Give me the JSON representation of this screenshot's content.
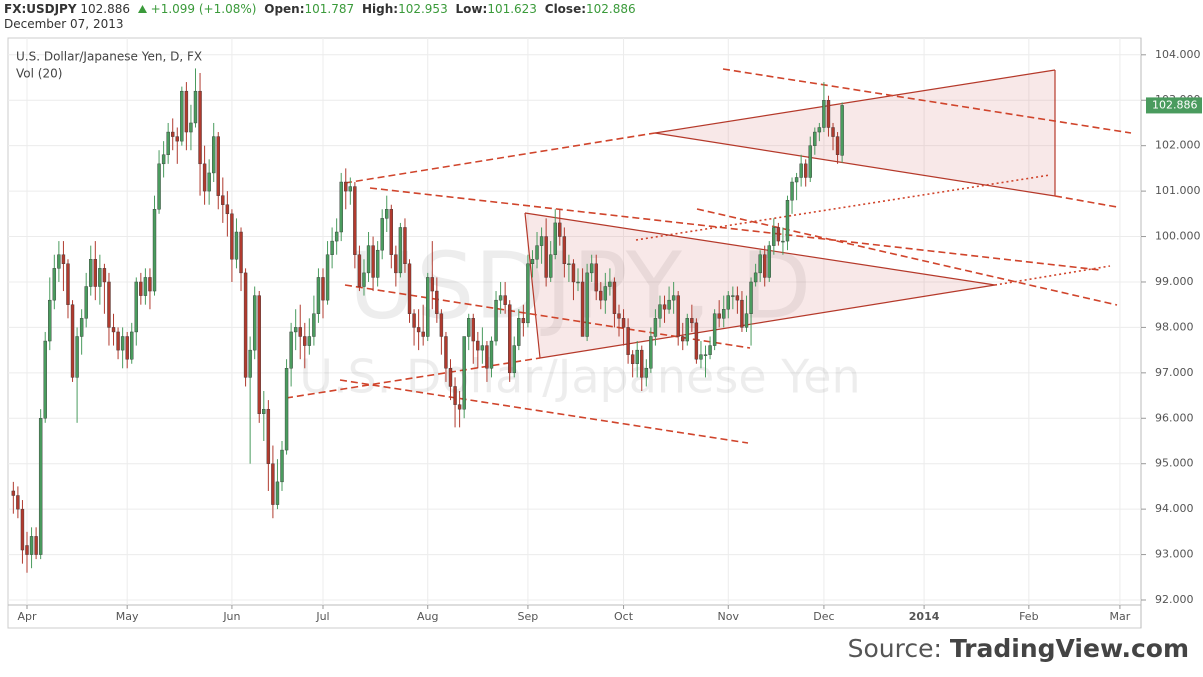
{
  "header": {
    "symbol": "FX:USDJPY",
    "price": "102.886",
    "change": "+1.099 (+1.08%)",
    "stats": [
      {
        "label": "Open:",
        "value": "101.787"
      },
      {
        "label": "High:",
        "value": "102.953"
      },
      {
        "label": "Low:",
        "value": "101.623"
      },
      {
        "label": "Close:",
        "value": "102.886"
      }
    ],
    "date": "December 07, 2013"
  },
  "footer": {
    "source_label": "Source:",
    "source": "TradingView.com"
  },
  "chart_data": {
    "type": "candlestick",
    "title": "U.S. Dollar/Japanese Yen, D, FX",
    "volume_label": "Vol (20)",
    "watermark": "USDJPY, D",
    "watermark_subtitle": "U.S. Dollar/Japanese Yen",
    "up_color": "#4a9b5e",
    "down_color": "#b03a2e",
    "grid": true,
    "categories": [
      null,
      null,
      null,
      "Apr",
      null,
      null,
      null,
      null,
      null,
      null,
      null,
      null,
      null,
      null,
      null,
      null,
      null,
      null,
      null,
      null,
      null,
      null,
      null,
      null,
      null,
      "May",
      null,
      null,
      null,
      null,
      null,
      null,
      null,
      null,
      null,
      null,
      null,
      null,
      null,
      null,
      null,
      null,
      null,
      null,
      null,
      null,
      null,
      null,
      "Jun",
      null,
      null,
      null,
      null,
      null,
      null,
      null,
      null,
      null,
      null,
      null,
      null,
      null,
      null,
      null,
      null,
      null,
      null,
      null,
      "Jul",
      null,
      null,
      null,
      null,
      null,
      null,
      null,
      null,
      null,
      null,
      null,
      null,
      null,
      null,
      null,
      null,
      null,
      null,
      null,
      null,
      null,
      null,
      "Aug",
      null,
      null,
      null,
      null,
      null,
      null,
      null,
      null,
      null,
      null,
      null,
      null,
      null,
      null,
      null,
      null,
      null,
      null,
      null,
      null,
      null,
      "Sep",
      null,
      null,
      null,
      null,
      null,
      null,
      null,
      null,
      null,
      null,
      null,
      null,
      null,
      null,
      null,
      null,
      null,
      null,
      null,
      null,
      "Oct",
      null,
      null,
      null,
      null,
      null,
      null,
      null,
      null,
      null,
      null,
      null,
      null,
      null,
      null,
      null,
      null,
      null,
      null,
      null,
      null,
      null,
      null,
      "Nov",
      null,
      null,
      null,
      null,
      null,
      null,
      null,
      null,
      null,
      null,
      null,
      null,
      null,
      null,
      null,
      null,
      null,
      null,
      null,
      null,
      "Dec",
      null,
      null,
      null,
      null,
      null,
      null,
      null,
      null,
      null,
      null,
      null,
      null,
      null,
      null,
      null,
      null,
      null,
      null,
      null,
      null,
      null,
      "2014",
      null,
      null,
      null,
      null,
      null,
      null,
      null,
      null,
      null,
      null,
      null,
      null,
      null,
      null,
      null,
      null,
      null,
      null,
      null,
      null,
      null,
      null,
      "Feb",
      null,
      null,
      null,
      null,
      null,
      null,
      null,
      null,
      null,
      null,
      null,
      null,
      null,
      null,
      null,
      null,
      null,
      null,
      null,
      "Mar",
      null,
      null,
      null,
      null
    ],
    "open": [
      94.4,
      94.3,
      94.0,
      93.2,
      93.0,
      93.4,
      93.0,
      96.0,
      97.7,
      98.6,
      99.3,
      99.6,
      99.4,
      98.5,
      96.9,
      97.8,
      98.2,
      98.9,
      99.5,
      98.9,
      99.3,
      99.0,
      98.0,
      97.9,
      97.5,
      97.8,
      97.3,
      97.9,
      99.0,
      98.7,
      99.1,
      98.8,
      100.6,
      101.6,
      101.8,
      102.3,
      102.2,
      102.1,
      103.2,
      102.3,
      102.5,
      103.2,
      101.6,
      101.0,
      101.4,
      102.2,
      100.9,
      100.7,
      100.5,
      99.5,
      100.1,
      99.2,
      96.9,
      97.5,
      98.7,
      96.1,
      96.2,
      95.0,
      94.1,
      94.6,
      95.3,
      97.1,
      97.9,
      98.0,
      97.8,
      97.6,
      97.8,
      98.3,
      99.1,
      98.6,
      99.6,
      99.9,
      100.1,
      101.2,
      101.0,
      101.1,
      99.6,
      98.9,
      99.2,
      99.8,
      99.1,
      99.7,
      100.4,
      100.6,
      99.6,
      99.2,
      100.2,
      99.4,
      98.3,
      98.0,
      97.9,
      97.8,
      99.1,
      98.8,
      98.3,
      97.8,
      97.1,
      96.7,
      96.3,
      96.2,
      97.8,
      98.2,
      97.7,
      97.5,
      97.6,
      97.1,
      97.7,
      98.6,
      98.7,
      98.5,
      97.0,
      97.6,
      98.2,
      98.1,
      99.4,
      99.5,
      99.8,
      100.0,
      99.1,
      99.6,
      100.3,
      100.0,
      99.4,
      99.4,
      99.0,
      99.0,
      97.8,
      99.2,
      99.4,
      98.8,
      98.6,
      98.9,
      99.0,
      98.3,
      98.2,
      98.0,
      97.4,
      97.2,
      97.5,
      96.9,
      97.1,
      97.8,
      98.2,
      98.5,
      98.4,
      98.6,
      98.7,
      97.8,
      97.7,
      98.2,
      98.1,
      97.3,
      97.4,
      97.4,
      97.6,
      98.3,
      98.2,
      98.4,
      98.7,
      98.7,
      98.6,
      98.0,
      98.3,
      99.0,
      99.2,
      99.6,
      99.1,
      99.8,
      100.2,
      99.9,
      99.9,
      100.8,
      101.2,
      101.3,
      101.6,
      101.3,
      102.0,
      102.3,
      102.4,
      103.0,
      102.4,
      102.2,
      101.787,
      null,
      null,
      null,
      null,
      null,
      null,
      null,
      null,
      null,
      null,
      null,
      null,
      null,
      null,
      null,
      null,
      null,
      null,
      null,
      null,
      null,
      null,
      null,
      null,
      null,
      null,
      null,
      null,
      null,
      null,
      null,
      null,
      null,
      null,
      null,
      null,
      null,
      null,
      null,
      null,
      null,
      null,
      null,
      null,
      null,
      null,
      null,
      null,
      null,
      null,
      null,
      null,
      null,
      null,
      null,
      null,
      null,
      null,
      null,
      null,
      null,
      null,
      null,
      null,
      null
    ],
    "high": [
      94.6,
      94.5,
      94.2,
      93.5,
      93.6,
      93.6,
      96.2,
      97.9,
      99.1,
      99.6,
      99.9,
      99.9,
      99.5,
      98.6,
      98.0,
      98.4,
      99.2,
      99.8,
      99.9,
      99.6,
      99.4,
      99.2,
      98.3,
      98.0,
      98.0,
      97.9,
      98.1,
      99.1,
      99.2,
      99.3,
      99.3,
      100.9,
      101.9,
      102.1,
      102.5,
      102.6,
      102.4,
      103.3,
      103.4,
      102.9,
      103.7,
      103.6,
      102.0,
      101.7,
      102.5,
      102.3,
      101.3,
      101.0,
      100.6,
      100.4,
      100.2,
      99.3,
      97.8,
      98.9,
      98.8,
      96.6,
      96.4,
      95.4,
      95.1,
      95.5,
      97.3,
      98.1,
      98.4,
      98.5,
      98.1,
      98.2,
      98.7,
      99.3,
      99.3,
      99.9,
      100.2,
      100.4,
      101.4,
      101.5,
      101.3,
      101.2,
      99.8,
      99.5,
      100.1,
      100.0,
      99.9,
      100.6,
      100.9,
      100.7,
      99.8,
      100.3,
      100.4,
      99.5,
      98.4,
      98.4,
      98.5,
      99.2,
      99.9,
      99.1,
      98.4,
      97.9,
      97.3,
      96.9,
      96.6,
      97.8,
      98.3,
      98.3,
      97.9,
      98.0,
      97.7,
      97.8,
      98.8,
      99.0,
      99.0,
      98.6,
      97.8,
      98.4,
      98.5,
      99.6,
      99.7,
      100.1,
      100.2,
      100.4,
      99.9,
      100.6,
      100.6,
      100.2,
      99.6,
      99.5,
      99.3,
      99.3,
      99.4,
      99.6,
      99.6,
      99.0,
      99.2,
      99.3,
      99.1,
      98.5,
      98.4,
      98.2,
      97.5,
      97.7,
      97.6,
      97.3,
      98.0,
      98.4,
      98.7,
      98.7,
      98.9,
      99.0,
      98.8,
      98.1,
      98.3,
      98.5,
      98.2,
      97.7,
      97.6,
      97.8,
      98.4,
      98.6,
      98.7,
      98.8,
      98.9,
      98.9,
      98.8,
      98.7,
      99.1,
      99.4,
      99.7,
      99.8,
      99.9,
      100.4,
      100.3,
      100.2,
      100.9,
      101.3,
      101.4,
      101.8,
      101.7,
      102.2,
      102.4,
      102.5,
      103.4,
      103.1,
      102.5,
      102.3,
      102.953,
      null,
      null,
      null,
      null,
      null,
      null,
      null,
      null,
      null,
      null,
      null,
      null,
      null,
      null,
      null,
      null,
      null,
      null,
      null,
      null,
      null,
      null,
      null,
      null,
      null,
      null,
      null,
      null,
      null,
      null,
      null,
      null,
      null,
      null,
      null,
      null,
      null,
      null,
      null,
      null,
      null,
      null,
      null,
      null,
      null,
      null,
      null,
      null,
      null,
      null,
      null,
      null,
      null,
      null,
      null,
      null,
      null,
      null,
      null,
      null,
      null,
      null,
      null,
      null,
      null
    ],
    "low": [
      93.9,
      93.8,
      92.8,
      92.6,
      92.7,
      92.9,
      92.9,
      95.9,
      97.5,
      98.4,
      99.0,
      98.8,
      98.2,
      96.8,
      95.9,
      97.4,
      98.0,
      98.7,
      98.6,
      98.5,
      98.3,
      97.6,
      97.6,
      97.3,
      97.1,
      97.1,
      97.2,
      97.6,
      98.5,
      98.5,
      98.4,
      98.7,
      100.5,
      101.3,
      101.6,
      101.9,
      101.6,
      102.0,
      101.9,
      101.9,
      102.4,
      100.9,
      100.7,
      100.7,
      101.2,
      100.6,
      100.3,
      100.0,
      99.0,
      99.3,
      98.8,
      96.7,
      95.0,
      97.3,
      95.9,
      95.5,
      94.4,
      93.8,
      94.0,
      94.4,
      95.2,
      96.7,
      97.5,
      97.3,
      97.1,
      97.4,
      97.6,
      98.1,
      98.2,
      98.5,
      99.3,
      99.6,
      99.9,
      100.6,
      100.7,
      99.3,
      98.8,
      98.7,
      99.0,
      98.8,
      98.9,
      99.5,
      100.1,
      99.3,
      98.9,
      99.1,
      99.2,
      98.1,
      97.6,
      97.5,
      97.6,
      97.7,
      98.4,
      98.1,
      97.4,
      96.8,
      96.4,
      95.8,
      95.8,
      96.0,
      97.5,
      97.2,
      97.1,
      97.2,
      96.8,
      96.9,
      97.6,
      98.3,
      98.3,
      96.8,
      96.9,
      97.5,
      97.8,
      98.0,
      99.1,
      99.3,
      99.4,
      98.9,
      99.0,
      99.5,
      99.8,
      99.1,
      99.0,
      98.6,
      98.8,
      97.8,
      97.7,
      99.0,
      98.6,
      98.4,
      98.3,
      98.7,
      98.0,
      97.8,
      97.6,
      97.2,
      96.9,
      96.9,
      96.6,
      96.7,
      97.0,
      97.6,
      98.0,
      98.1,
      98.3,
      98.3,
      97.6,
      97.5,
      97.6,
      97.9,
      97.2,
      97.1,
      96.9,
      97.3,
      97.5,
      98.0,
      98.0,
      98.2,
      98.4,
      98.3,
      97.9,
      97.9,
      97.6,
      98.9,
      99.0,
      98.9,
      99.0,
      99.6,
      99.8,
      99.6,
      99.7,
      100.5,
      100.8,
      101.1,
      101.1,
      101.2,
      101.8,
      102.1,
      102.3,
      102.2,
      101.9,
      101.6,
      101.623,
      null,
      null,
      null,
      null,
      null,
      null,
      null,
      null,
      null,
      null,
      null,
      null,
      null,
      null,
      null,
      null,
      null,
      null,
      null,
      null,
      null,
      null,
      null,
      null,
      null,
      null,
      null,
      null,
      null,
      null,
      null,
      null,
      null,
      null,
      null,
      null,
      null,
      null,
      null,
      null,
      null,
      null,
      null,
      null,
      null,
      null,
      null,
      null,
      null,
      null,
      null,
      null,
      null,
      null,
      null,
      null,
      null,
      null,
      null,
      null,
      null,
      null,
      null,
      null,
      null
    ],
    "close": [
      94.3,
      94.0,
      93.1,
      93.0,
      93.4,
      93.0,
      96.0,
      97.7,
      98.6,
      99.3,
      99.6,
      99.4,
      98.5,
      96.9,
      97.8,
      98.2,
      98.9,
      99.5,
      98.9,
      99.3,
      99.0,
      98.0,
      97.9,
      97.5,
      97.8,
      97.3,
      97.9,
      99.0,
      98.7,
      99.1,
      98.8,
      100.6,
      101.6,
      101.8,
      102.3,
      102.2,
      102.1,
      103.2,
      102.3,
      102.5,
      103.2,
      101.6,
      101.0,
      101.4,
      102.2,
      100.9,
      100.7,
      100.5,
      99.5,
      100.1,
      99.2,
      96.9,
      97.5,
      98.7,
      96.1,
      96.2,
      95.0,
      94.1,
      94.6,
      95.3,
      97.1,
      97.9,
      98.0,
      97.8,
      97.6,
      97.8,
      98.3,
      99.1,
      98.6,
      99.6,
      99.9,
      100.1,
      101.2,
      101.0,
      101.1,
      99.6,
      98.9,
      99.2,
      99.8,
      99.1,
      99.7,
      100.4,
      100.6,
      99.6,
      99.2,
      100.2,
      99.4,
      98.3,
      98.0,
      97.9,
      97.8,
      99.1,
      98.8,
      98.3,
      97.8,
      97.1,
      96.7,
      96.3,
      96.2,
      97.8,
      98.2,
      97.7,
      97.5,
      97.6,
      97.1,
      97.7,
      98.6,
      98.7,
      98.5,
      97.0,
      97.6,
      98.2,
      98.1,
      99.4,
      99.5,
      99.8,
      100.0,
      99.1,
      99.6,
      100.3,
      100.0,
      99.4,
      99.4,
      99.0,
      99.0,
      97.8,
      99.2,
      99.4,
      98.8,
      98.6,
      98.9,
      99.0,
      98.3,
      98.2,
      98.0,
      97.4,
      97.2,
      97.5,
      96.9,
      97.1,
      97.8,
      98.2,
      98.5,
      98.4,
      98.6,
      98.7,
      97.8,
      97.7,
      98.2,
      98.1,
      97.3,
      97.4,
      97.4,
      97.6,
      98.3,
      98.2,
      98.4,
      98.7,
      98.7,
      98.6,
      98.0,
      98.3,
      99.0,
      99.2,
      99.6,
      99.1,
      99.8,
      100.2,
      99.9,
      99.9,
      100.8,
      101.2,
      101.3,
      101.6,
      101.3,
      102.0,
      102.3,
      102.4,
      103.0,
      102.4,
      102.2,
      101.8,
      102.886,
      null,
      null,
      null,
      null,
      null,
      null,
      null,
      null,
      null,
      null,
      null,
      null,
      null,
      null,
      null,
      null,
      null,
      null,
      null,
      null,
      null,
      null,
      null,
      null,
      null,
      null,
      null,
      null,
      null,
      null,
      null,
      null,
      null,
      null,
      null,
      null,
      null,
      null,
      null,
      null,
      null,
      null,
      null,
      null,
      null,
      null,
      null,
      null,
      null,
      null,
      null,
      null,
      null,
      null,
      null,
      null,
      null,
      null,
      null,
      null,
      null,
      null,
      null,
      null,
      null
    ],
    "ylim": [
      91.89,
      104.37
    ],
    "yticks": [
      {
        "value": 92,
        "label": "92.000"
      },
      {
        "value": 93,
        "label": "93.000"
      },
      {
        "value": 94,
        "label": "94.000"
      },
      {
        "value": 95,
        "label": "95.000"
      },
      {
        "value": 96,
        "label": "96.000"
      },
      {
        "value": 97,
        "label": "97.000"
      },
      {
        "value": 98,
        "label": "98.000"
      },
      {
        "value": 99,
        "label": "99.000"
      },
      {
        "value": 100,
        "label": "100.000"
      },
      {
        "value": 101,
        "label": "101.000"
      },
      {
        "value": 102,
        "label": "102.000"
      },
      {
        "value": 103,
        "label": "103.000"
      },
      {
        "value": 104,
        "label": "104.000"
      }
    ]
  }
}
